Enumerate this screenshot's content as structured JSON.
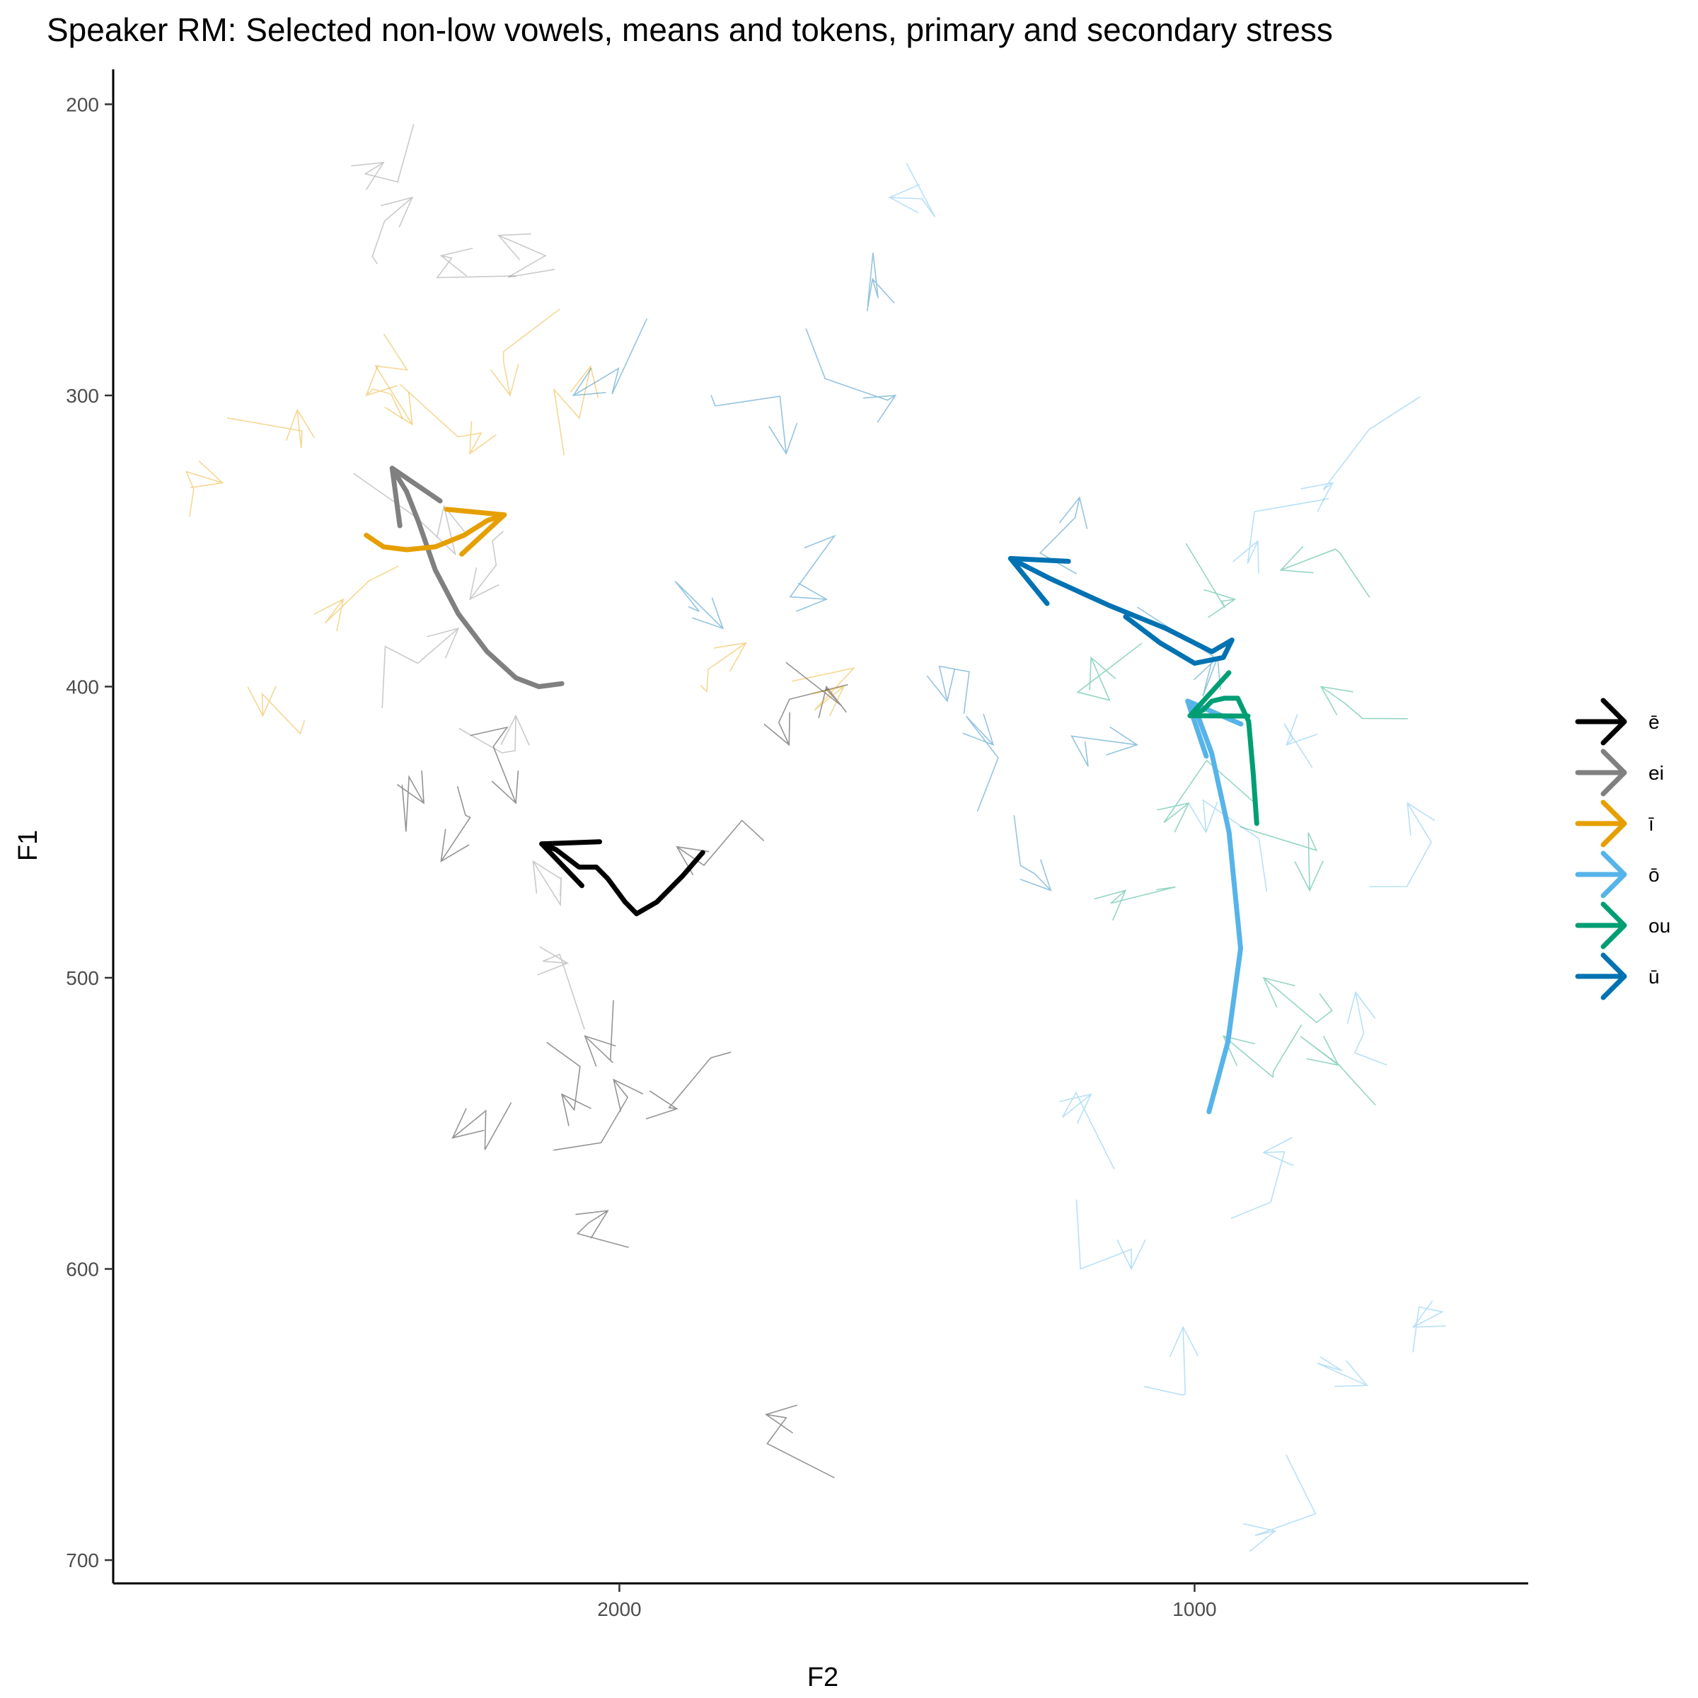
{
  "chart_data": {
    "type": "line",
    "title": "Speaker RM: Selected non-low vowels, means and tokens, primary and secondary stress",
    "xlabel": "F2",
    "ylabel": "F1",
    "x_reversed": true,
    "y_reversed": true,
    "xlim": [
      2880,
      420
    ],
    "ylim": [
      188,
      708
    ],
    "x_ticks": [
      {
        "value": 2000,
        "label": "2000"
      },
      {
        "value": 1000,
        "label": "1000"
      }
    ],
    "y_ticks": [
      {
        "value": 200,
        "label": "200"
      },
      {
        "value": 300,
        "label": "300"
      },
      {
        "value": 400,
        "label": "400"
      },
      {
        "value": 500,
        "label": "500"
      },
      {
        "value": 600,
        "label": "600"
      },
      {
        "value": 700,
        "label": "700"
      }
    ],
    "grid": false,
    "legend_position": "right",
    "series": [
      {
        "name": "ē",
        "color": "#000000",
        "mean_trajectory": [
          [
            1855,
            457
          ],
          [
            1890,
            465
          ],
          [
            1935,
            474
          ],
          [
            1970,
            478
          ],
          [
            1990,
            474
          ],
          [
            2020,
            466
          ],
          [
            2040,
            462
          ],
          [
            2070,
            462
          ],
          [
            2110,
            456
          ],
          [
            2135,
            454
          ]
        ],
        "tokens": [
          [
            2060,
            520
          ],
          [
            2010,
            535
          ],
          [
            1900,
            545
          ],
          [
            1745,
            650
          ],
          [
            1640,
            400
          ],
          [
            1705,
            420
          ],
          [
            1900,
            455
          ],
          [
            2290,
            555
          ],
          [
            2310,
            460
          ],
          [
            2340,
            440
          ],
          [
            2180,
            440
          ],
          [
            2100,
            540
          ],
          [
            2020,
            580
          ]
        ]
      },
      {
        "name": "ei",
        "color": "#808080",
        "mean_trajectory": [
          [
            2100,
            399
          ],
          [
            2140,
            400
          ],
          [
            2180,
            397
          ],
          [
            2230,
            388
          ],
          [
            2280,
            375
          ],
          [
            2320,
            360
          ],
          [
            2350,
            343
          ],
          [
            2370,
            333
          ],
          [
            2395,
            325
          ]
        ],
        "tokens": [
          [
            2410,
            220
          ],
          [
            2310,
            252
          ],
          [
            2210,
            245
          ],
          [
            2180,
            410
          ],
          [
            2280,
            380
          ],
          [
            2360,
            232
          ],
          [
            2305,
            338
          ],
          [
            2090,
            495
          ],
          [
            2150,
            460
          ],
          [
            2260,
            370
          ]
        ]
      },
      {
        "name": "ī",
        "color": "#E69F00",
        "mean_trajectory": [
          [
            2440,
            348
          ],
          [
            2410,
            352
          ],
          [
            2370,
            353
          ],
          [
            2320,
            352
          ],
          [
            2270,
            348
          ],
          [
            2230,
            343
          ],
          [
            2200,
            341
          ]
        ],
        "tokens": [
          [
            2690,
            330
          ],
          [
            2560,
            305
          ],
          [
            2480,
            370
          ],
          [
            2360,
            310
          ],
          [
            2260,
            320
          ],
          [
            1610,
            400
          ],
          [
            2050,
            290
          ],
          [
            1780,
            385
          ],
          [
            2620,
            410
          ],
          [
            2190,
            300
          ],
          [
            2440,
            300
          ]
        ]
      },
      {
        "name": "ō",
        "color": "#56B4E9",
        "mean_trajectory": [
          [
            975,
            546
          ],
          [
            942,
            522
          ],
          [
            920,
            490
          ],
          [
            940,
            450
          ],
          [
            970,
            423
          ],
          [
            998,
            408
          ],
          [
            1012,
            405
          ]
        ],
        "tokens": [
          [
            1530,
            232
          ],
          [
            890,
            350
          ],
          [
            760,
            330
          ],
          [
            630,
            440
          ],
          [
            720,
            505
          ],
          [
            860,
            690
          ],
          [
            1020,
            620
          ],
          [
            1110,
            600
          ],
          [
            880,
            560
          ],
          [
            980,
            450
          ],
          [
            700,
            640
          ],
          [
            1180,
            540
          ],
          [
            620,
            620
          ],
          [
            840,
            420
          ]
        ]
      },
      {
        "name": "ou",
        "color": "#009E73",
        "mean_trajectory": [
          [
            892,
            447
          ],
          [
            898,
            430
          ],
          [
            906,
            412
          ],
          [
            925,
            404
          ],
          [
            948,
            404
          ],
          [
            970,
            405
          ],
          [
            985,
            408
          ],
          [
            1008,
            410
          ]
        ],
        "tokens": [
          [
            1180,
            390
          ],
          [
            930,
            370
          ],
          [
            780,
            400
          ],
          [
            750,
            530
          ],
          [
            1010,
            440
          ],
          [
            880,
            500
          ],
          [
            850,
            360
          ],
          [
            1120,
            470
          ],
          [
            800,
            470
          ],
          [
            950,
            520
          ]
        ]
      },
      {
        "name": "ū",
        "color": "#0072B2",
        "mean_trajectory": [
          [
            1120,
            376
          ],
          [
            1060,
            385
          ],
          [
            1000,
            392
          ],
          [
            950,
            390
          ],
          [
            935,
            384
          ],
          [
            970,
            388
          ],
          [
            1050,
            380
          ],
          [
            1150,
            372
          ],
          [
            1250,
            363
          ],
          [
            1320,
            356
          ]
        ],
        "tokens": [
          [
            1640,
            370
          ],
          [
            1350,
            420
          ],
          [
            1430,
            405
          ],
          [
            1710,
            320
          ],
          [
            1200,
            335
          ],
          [
            1520,
            300
          ],
          [
            1100,
            420
          ],
          [
            1820,
            380
          ],
          [
            2080,
            300
          ],
          [
            960,
            390
          ],
          [
            1250,
            470
          ],
          [
            1560,
            260
          ]
        ]
      }
    ]
  }
}
